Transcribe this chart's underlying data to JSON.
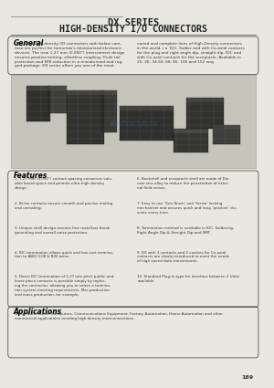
{
  "title_line1": "DX SERIES",
  "title_line2": "HIGH-DENSITY I/O CONNECTORS",
  "bg_color": "#f0f0eb",
  "page_bg": "#e8e8e0",
  "section_general_title": "General",
  "general_text_left": "DX series high-density I/O connectors with below com-\nmon are perfect for tomorrow's miniaturized electronic\ndevices. The new 1.27 mm (0.050\") Interconnect design\nensures positive locking, effortless coupling, Hi-de tail\nprotection and EMI reduction in a miniaturized and rug-\nged package. DX series offers you one of the most",
  "general_text_right": "varied and complete lines of High-Density connectors\nin the world, i.e. IDC, Solder and with Co-axial contacts\nfor the plug and right angle dip, straight dip, IDC and\nwith Co-axial contacts for the receptacle. Available in\n20, 26, 34,50, 68, 80, 100 and 152 way.",
  "section_features_title": "Features",
  "features_left": [
    "1.27 mm (0.050\") contact spacing conserves valu-\nable board space and permits ultra-high density\ndesign.",
    "Bi-lox contacts ensure smooth and precise mating\nand unmating.",
    "Unique shell design assures first mate/last break\ngrounding and overall noise protection.",
    "IDC termination allows quick and low cost termina-\ntion to AWG 0.08 & B30 wires.",
    "Direct IDC termination of 1.27 mm pitch public and\nloose piece contacts is possible simply by replac-\ning the connector, allowing you to select a termina-\ntion system meeting requirements. Mas production\nand mass production, for example."
  ],
  "features_right": [
    "Backshell and receptacle shell are made of Die-\ncast zinc alloy to reduce the penetration of exter-\nnal field noises.",
    "Easy to use 'One-Touch' and 'Screw' locking\nmechanism and assures quick and easy 'positive' clo-\nsures every time.",
    "Termination method is available in IDC, Soldering,\nRight Angle Dip & Straight Dip and SMT.",
    "DX with 3 contacts and 2 cavities for Co-axial\ncontacts are slowly introduced to meet the needs\nof high speed data transmission.",
    "Standard Plug-in type for interface between 2 Units\navailable."
  ],
  "section_applications_title": "Applications",
  "applications_text": "Office Automation, Computers, Communications Equipment, Factory Automation, Home Automation and other\ncommercial applications needing high density interconnections.",
  "page_number": "189",
  "title_color": "#222222",
  "section_title_color": "#000000",
  "text_color": "#333333",
  "box_border_color": "#555555",
  "separator_color": "#888888"
}
